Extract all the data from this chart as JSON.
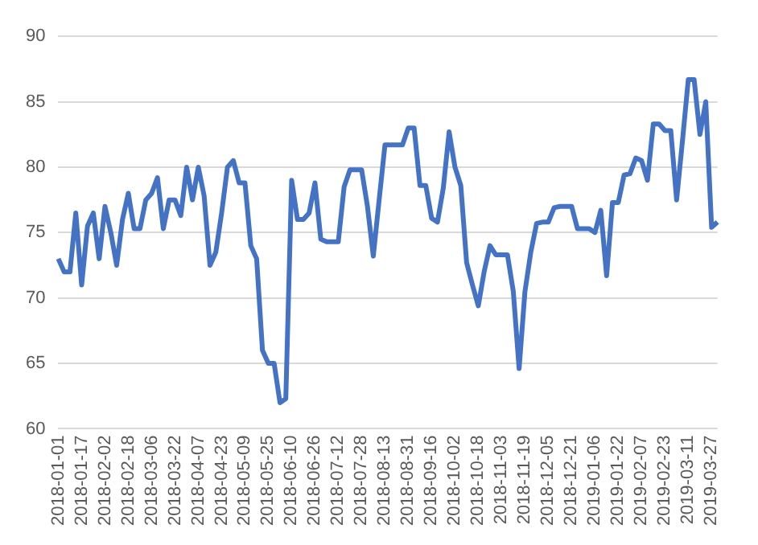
{
  "chart_data": {
    "type": "line",
    "categories": [
      "2018-01-01",
      null,
      null,
      null,
      "2018-01-17",
      null,
      null,
      null,
      "2018-02-02",
      null,
      null,
      null,
      "2018-02-18",
      null,
      null,
      null,
      "2018-03-06",
      null,
      null,
      null,
      "2018-03-22",
      null,
      null,
      null,
      "2018-04-07",
      null,
      null,
      null,
      "2018-04-23",
      null,
      null,
      null,
      "2018-05-09",
      null,
      null,
      null,
      "2018-05-25",
      null,
      null,
      null,
      "2018-06-10",
      null,
      null,
      null,
      "2018-06-26",
      null,
      null,
      null,
      "2018-07-12",
      null,
      null,
      null,
      "2018-07-28",
      null,
      null,
      null,
      "2018-08-13",
      null,
      null,
      null,
      "2018-08-31",
      null,
      null,
      null,
      "2018-09-16",
      null,
      null,
      null,
      "2018-10-02",
      null,
      null,
      null,
      "2018-10-18",
      null,
      null,
      null,
      "2018-11-03",
      null,
      null,
      null,
      "2018-11-19",
      null,
      null,
      null,
      "2018-12-05",
      null,
      null,
      null,
      "2018-12-21",
      null,
      null,
      null,
      "2019-01-06",
      null,
      null,
      null,
      "2019-01-22",
      null,
      null,
      null,
      "2019-02-07",
      null,
      null,
      null,
      "2019-02-23",
      null,
      null,
      null,
      "2019-03-11",
      null,
      null,
      null,
      "2019-03-27",
      null
    ],
    "series": [
      {
        "color": "#4472c4",
        "values": [
          73,
          72,
          72,
          76.5,
          71,
          75.5,
          76.5,
          73,
          77,
          75,
          72.5,
          76,
          78,
          75.3,
          75.3,
          77.5,
          78,
          79.2,
          75.3,
          77.5,
          77.5,
          76.3,
          80,
          77.5,
          80,
          77.8,
          72.5,
          73.5,
          76.5,
          80,
          80.5,
          78.8,
          78.8,
          74,
          73,
          66,
          65,
          65,
          62,
          62.3,
          79,
          76,
          76,
          76.5,
          78.8,
          74.5,
          74.3,
          74.3,
          74.3,
          78.5,
          79.8,
          79.8,
          79.8,
          77,
          73.2,
          77.5,
          81.7,
          81.7,
          81.7,
          81.7,
          83,
          83,
          78.6,
          78.6,
          76.1,
          75.8,
          78.4,
          82.7,
          80,
          78.6,
          72.7,
          71,
          69.4,
          72,
          74,
          73.3,
          73.3,
          73.3,
          70.5,
          64.6,
          70.5,
          73.5,
          75.7,
          75.8,
          75.8,
          76.9,
          77,
          77,
          77,
          75.3,
          75.3,
          75.3,
          75,
          76.7,
          71.7,
          77.3,
          77.3,
          79.4,
          79.5,
          80.7,
          80.5,
          79,
          83.3,
          83.3,
          82.8,
          82.8,
          77.5,
          82,
          86.7,
          86.7,
          82.5,
          85,
          75.4,
          75.8
        ]
      }
    ],
    "ylim": [
      60,
      90
    ],
    "yticks": [
      60,
      65,
      70,
      75,
      80,
      85,
      90
    ],
    "grid": "y",
    "legend": false,
    "marker": "none",
    "line_style": "solid"
  }
}
